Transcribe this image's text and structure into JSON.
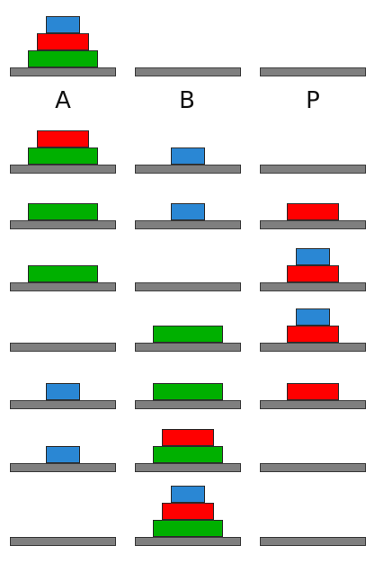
{
  "labels": [
    "A",
    "B",
    "P"
  ],
  "colors": {
    "small": "#2a87d4",
    "medium": "#ff0000",
    "large": "#00b000",
    "peg": "#7f7f7f"
  },
  "states": [
    [
      [
        "large",
        "medium",
        "small"
      ],
      [],
      []
    ],
    [
      [
        "large",
        "medium"
      ],
      [
        "small"
      ],
      []
    ],
    [
      [
        "large"
      ],
      [
        "small"
      ],
      [
        "medium"
      ]
    ],
    [
      [
        "large"
      ],
      [],
      [
        "medium",
        "small"
      ]
    ],
    [
      [],
      [
        "large"
      ],
      [
        "medium",
        "small"
      ]
    ],
    [
      [
        "small"
      ],
      [
        "large"
      ],
      [
        "medium"
      ]
    ],
    [
      [
        "small"
      ],
      [
        "large",
        "medium"
      ],
      []
    ],
    [
      [],
      [
        "large",
        "medium",
        "small"
      ],
      []
    ]
  ]
}
